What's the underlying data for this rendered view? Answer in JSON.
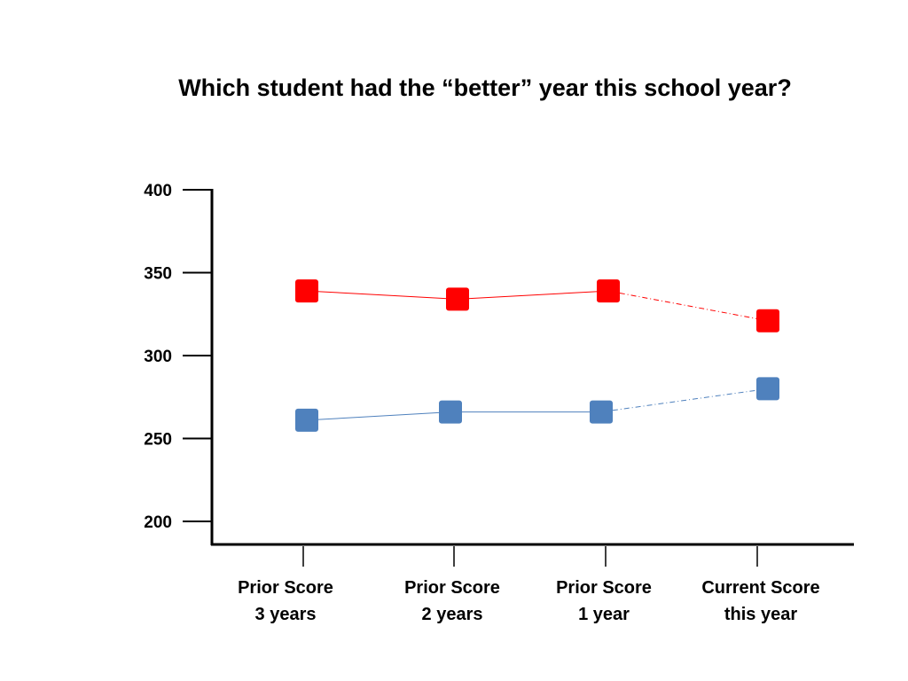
{
  "chart_data": {
    "type": "line",
    "title": "Which student had the “better” year this school year?",
    "xlabel": "",
    "ylabel": "",
    "ylim": [
      200,
      400
    ],
    "y_ticks": [
      "400",
      "350",
      "300",
      "250",
      "200"
    ],
    "y_tick_values": [
      400,
      350,
      300,
      250,
      200
    ],
    "categories": [
      [
        "Prior Score",
        "3 years"
      ],
      [
        "Prior Score",
        "2 years"
      ],
      [
        "Prior Score",
        "1 year"
      ],
      [
        "Current Score",
        "this year"
      ]
    ],
    "grid": false,
    "legend": "none",
    "series": [
      {
        "color": "#ff0000",
        "marker": "square",
        "values": [
          339,
          334,
          339,
          321
        ],
        "last_segment_style": "dash-dot"
      },
      {
        "color": "#4f81bd",
        "marker": "square",
        "values": [
          261,
          266,
          266,
          280
        ],
        "last_segment_style": "dash-dot"
      }
    ]
  }
}
